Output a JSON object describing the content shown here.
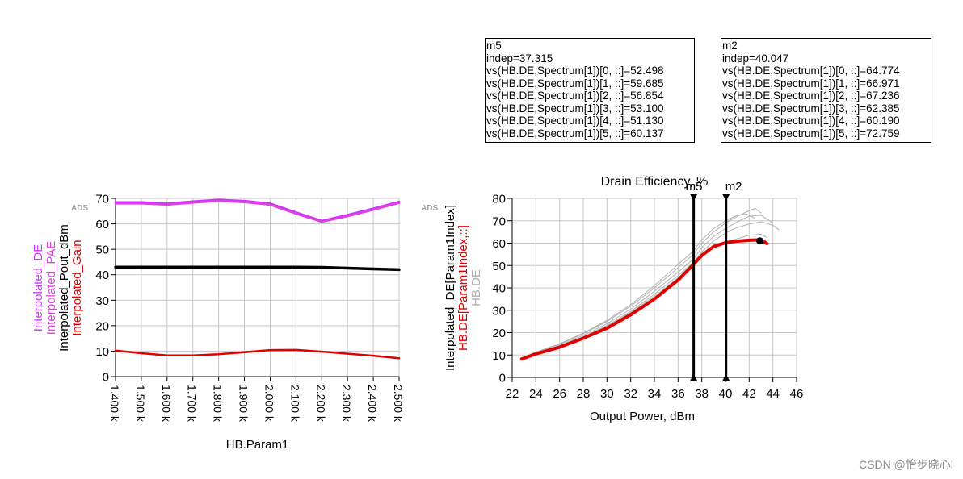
{
  "markers": [
    {
      "name": "m5",
      "indep": "indep=37.315",
      "lines": [
        "vs(HB.DE,Spectrum[1])[0, ::]=52.498",
        "vs(HB.DE,Spectrum[1])[1, ::]=59.685",
        "vs(HB.DE,Spectrum[1])[2, ::]=56.854",
        "vs(HB.DE,Spectrum[1])[3, ::]=53.100",
        "vs(HB.DE,Spectrum[1])[4, ::]=51.130",
        "vs(HB.DE,Spectrum[1])[5, ::]=60.137"
      ]
    },
    {
      "name": "m2",
      "indep": "indep=40.047",
      "lines": [
        "vs(HB.DE,Spectrum[1])[0, ::]=64.774",
        "vs(HB.DE,Spectrum[1])[1, ::]=66.971",
        "vs(HB.DE,Spectrum[1])[2, ::]=67.236",
        "vs(HB.DE,Spectrum[1])[3, ::]=62.385",
        "vs(HB.DE,Spectrum[1])[4, ::]=60.190",
        "vs(HB.DE,Spectrum[1])[5, ::]=72.759"
      ]
    }
  ],
  "watermark": "CSDN @怡步晓心l",
  "colors": {
    "de": "#cc33ff",
    "pae": "#e040e0",
    "pout": "#000000",
    "gain": "#e00000",
    "thin": "#b0b0b0",
    "grid": "#c8c8c8"
  },
  "chart_data": [
    {
      "type": "line",
      "title": "",
      "badge": "ADS",
      "xlabel": "HB.Param1",
      "ylabels": [
        {
          "text": "Interpolated_DE",
          "color": "#cc33ff"
        },
        {
          "text": "Interpolated_PAE",
          "color": "#e040e0"
        },
        {
          "text": "Interpolated_Pout_dBm",
          "color": "#000000"
        },
        {
          "text": "Interpolated_Gain",
          "color": "#e00000"
        }
      ],
      "xlim": [
        1400,
        2500
      ],
      "ylim": [
        0,
        70
      ],
      "grid": true,
      "xticks": [
        1400,
        1500,
        1600,
        1700,
        1800,
        1900,
        2000,
        2100,
        2200,
        2300,
        2400,
        2500
      ],
      "xtick_labels": [
        "1.400 k",
        "1.500 k",
        "1.600 k",
        "1.700 k",
        "1.800 k",
        "1.900 k",
        "2.000 k",
        "2.100 k",
        "2.200 k",
        "2.300 k",
        "2.400 k",
        "2.500 k"
      ],
      "yticks": [
        0,
        10,
        20,
        30,
        40,
        50,
        60,
        70
      ],
      "ytick_labels": [
        "0",
        "10",
        "20",
        "30",
        "40",
        "50",
        "60",
        "70"
      ],
      "x": [
        1400,
        1500,
        1600,
        1700,
        1800,
        1900,
        2000,
        2100,
        2200,
        2300,
        2400,
        2500
      ],
      "series": [
        {
          "name": "Interpolated_DE",
          "color": "#cc33ff",
          "width": 2.5,
          "values": [
            68.5,
            68.5,
            68.0,
            68.8,
            69.5,
            69.0,
            68.0,
            64.5,
            61.2,
            63.5,
            66.0,
            68.7
          ]
        },
        {
          "name": "Interpolated_PAE",
          "color": "#e040e0",
          "width": 2.5,
          "values": [
            68.0,
            68.0,
            67.5,
            68.3,
            69.0,
            68.5,
            67.5,
            64.0,
            60.8,
            63.0,
            65.5,
            68.2
          ]
        },
        {
          "name": "Interpolated_Pout_dBm",
          "color": "#000000",
          "width": 3.5,
          "values": [
            43.0,
            43.0,
            43.0,
            43.0,
            43.0,
            43.0,
            43.0,
            43.0,
            42.9,
            42.6,
            42.3,
            42.0
          ]
        },
        {
          "name": "Interpolated_Gain",
          "color": "#e00000",
          "width": 2.5,
          "values": [
            10.2,
            9.2,
            8.3,
            8.3,
            8.8,
            9.6,
            10.4,
            10.5,
            9.8,
            9.0,
            8.2,
            7.2
          ]
        }
      ]
    },
    {
      "type": "line",
      "title": "Drain Efficiency, %",
      "badge": "ADS",
      "xlabel": "Output Power, dBm",
      "ylabels": [
        {
          "text": "Interpolated_DE[Param1Index]",
          "color": "#000000"
        },
        {
          "text": "HB.DE[Param1Index,::]",
          "color": "#e00000"
        },
        {
          "text": "HB.DE",
          "color": "#b0b0b0"
        }
      ],
      "xlim": [
        22,
        46
      ],
      "ylim": [
        0,
        80
      ],
      "grid": true,
      "xticks": [
        22,
        24,
        26,
        28,
        30,
        32,
        34,
        36,
        38,
        40,
        42,
        44,
        46
      ],
      "xtick_labels": [
        "22",
        "24",
        "26",
        "28",
        "30",
        "32",
        "34",
        "36",
        "38",
        "40",
        "42",
        "44",
        "46"
      ],
      "yticks": [
        0,
        10,
        20,
        30,
        40,
        50,
        60,
        70,
        80
      ],
      "ytick_labels": [
        "0",
        "10",
        "20",
        "30",
        "40",
        "50",
        "60",
        "70",
        "80"
      ],
      "markers": [
        {
          "name": "m5",
          "x": 37.315
        },
        {
          "name": "m2",
          "x": 40.047
        }
      ],
      "endpoint": {
        "x": 42.9,
        "y": 61.0
      },
      "series": [
        {
          "name": "HB.DE[Param1Index,::]",
          "color": "#e00000",
          "width": 4,
          "points": [
            [
              22.8,
              8.2
            ],
            [
              24,
              10.5
            ],
            [
              26,
              13.5
            ],
            [
              28,
              17.5
            ],
            [
              30,
              22.0
            ],
            [
              32,
              28.0
            ],
            [
              34,
              35.0
            ],
            [
              36,
              43.5
            ],
            [
              37.3,
              50.5
            ],
            [
              38,
              54.5
            ],
            [
              39,
              58.5
            ],
            [
              40,
              60.2
            ],
            [
              41,
              60.9
            ],
            [
              42,
              61.3
            ],
            [
              43.0,
              61.5
            ],
            [
              43.5,
              59.8
            ]
          ]
        },
        {
          "name": "HB.DE",
          "color": "#b0b0b0",
          "width": 1,
          "points": [
            [
              22.8,
              8.5
            ],
            [
              24,
              11.0
            ],
            [
              26,
              14.3
            ],
            [
              28,
              18.8
            ],
            [
              30,
              24.0
            ],
            [
              32,
              30.5
            ],
            [
              34,
              38.5
            ],
            [
              36,
              47.0
            ],
            [
              37.3,
              53.0
            ],
            [
              38,
              58.0
            ],
            [
              39,
              63.0
            ],
            [
              40,
              66.5
            ],
            [
              41,
              69.5
            ],
            [
              42,
              72.0
            ],
            [
              43,
              72.5
            ],
            [
              44,
              69.0
            ]
          ]
        },
        {
          "name": "HB.DE",
          "color": "#b0b0b0",
          "width": 1,
          "points": [
            [
              22.8,
              8.6
            ],
            [
              24,
              11.2
            ],
            [
              26,
              14.8
            ],
            [
              28,
              19.5
            ],
            [
              30,
              25.0
            ],
            [
              32,
              31.8
            ],
            [
              34,
              40.0
            ],
            [
              36,
              49.0
            ],
            [
              37.3,
              55.0
            ],
            [
              38,
              60.0
            ],
            [
              39,
              65.0
            ],
            [
              40,
              69.0
            ],
            [
              41,
              72.0
            ],
            [
              42,
              74.5
            ],
            [
              42.5,
              75.5
            ],
            [
              43,
              73.5
            ]
          ]
        },
        {
          "name": "HB.DE",
          "color": "#b0b0b0",
          "width": 1,
          "points": [
            [
              22.8,
              8.4
            ],
            [
              24,
              10.8
            ],
            [
              26,
              14.0
            ],
            [
              28,
              18.2
            ],
            [
              30,
              23.2
            ],
            [
              32,
              29.5
            ],
            [
              34,
              37.2
            ],
            [
              36,
              45.5
            ],
            [
              37.3,
              51.5
            ],
            [
              38,
              56.0
            ],
            [
              39,
              61.0
            ],
            [
              40,
              64.5
            ],
            [
              41,
              67.0
            ],
            [
              42,
              68.5
            ],
            [
              43,
              69.5
            ],
            [
              44,
              68.0
            ],
            [
              44.5,
              66.0
            ]
          ]
        },
        {
          "name": "HB.DE",
          "color": "#b0b0b0",
          "width": 1,
          "points": [
            [
              22.8,
              8.3
            ],
            [
              24,
              10.6
            ],
            [
              26,
              13.8
            ],
            [
              28,
              18.0
            ],
            [
              30,
              22.8
            ],
            [
              32,
              29.0
            ],
            [
              34,
              36.3
            ],
            [
              36,
              44.5
            ],
            [
              37.3,
              50.0
            ],
            [
              38,
              54.0
            ],
            [
              39,
              58.0
            ],
            [
              40,
              60.5
            ],
            [
              41,
              62.0
            ],
            [
              42,
              63.5
            ],
            [
              43,
              64.0
            ],
            [
              43.5,
              62.5
            ]
          ]
        },
        {
          "name": "HB.DE",
          "color": "#b0b0b0",
          "width": 1,
          "points": [
            [
              22.8,
              8.7
            ],
            [
              24,
              11.3
            ],
            [
              26,
              15.0
            ],
            [
              28,
              19.8
            ],
            [
              30,
              25.5
            ],
            [
              32,
              32.5
            ],
            [
              34,
              41.0
            ],
            [
              36,
              50.5
            ],
            [
              37.3,
              56.5
            ],
            [
              38,
              61.5
            ],
            [
              39,
              66.5
            ],
            [
              40,
              70.0
            ],
            [
              41,
              72.5
            ],
            [
              41.8,
              73.0
            ],
            [
              42.5,
              71.0
            ]
          ]
        }
      ]
    }
  ]
}
